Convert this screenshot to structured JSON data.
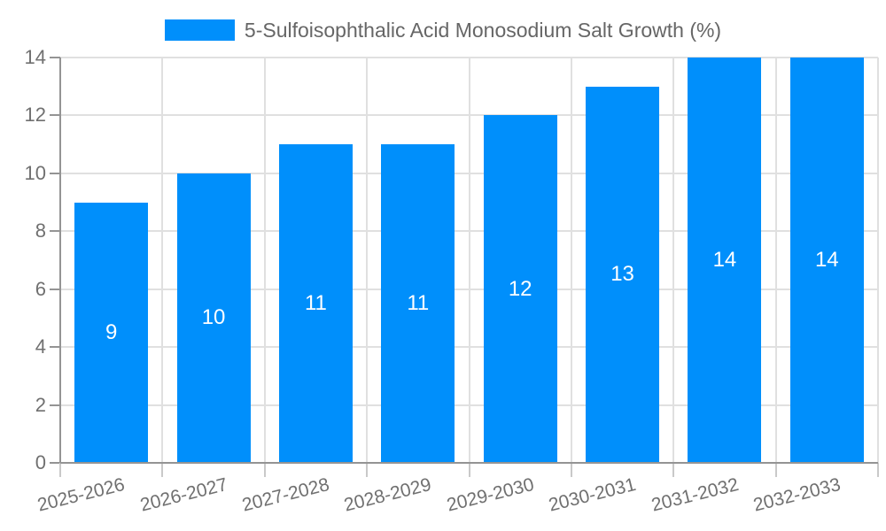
{
  "chart_data": {
    "type": "bar",
    "title": "5-Sulfoisophthalic Acid Monosodium Salt Growth (%)",
    "legend": {
      "label": "5-Sulfoisophthalic Acid Monosodium Salt Growth (%)",
      "position": "top"
    },
    "categories": [
      "2025-2026",
      "2026-2027",
      "2027-2028",
      "2028-2029",
      "2029-2030",
      "2030-2031",
      "2031-2032",
      "2032-2033"
    ],
    "values": [
      9,
      10,
      11,
      11,
      12,
      13,
      14,
      14
    ],
    "xlabel": "",
    "ylabel": "",
    "ylim": [
      0,
      14
    ],
    "yticks": [
      0,
      2,
      4,
      6,
      8,
      10,
      12,
      14
    ],
    "grid": true,
    "bar_labels_inside": true,
    "x_label_rotation_deg": -14,
    "colors": {
      "bar": "#008FFB",
      "grid": "#e0e0e0",
      "axis": "#949494",
      "x_tick_mark": "#c9c9c9",
      "tick_text": "#707070",
      "legend_text": "#666666",
      "bar_label": "#ffffff",
      "background": "#ffffff"
    }
  }
}
